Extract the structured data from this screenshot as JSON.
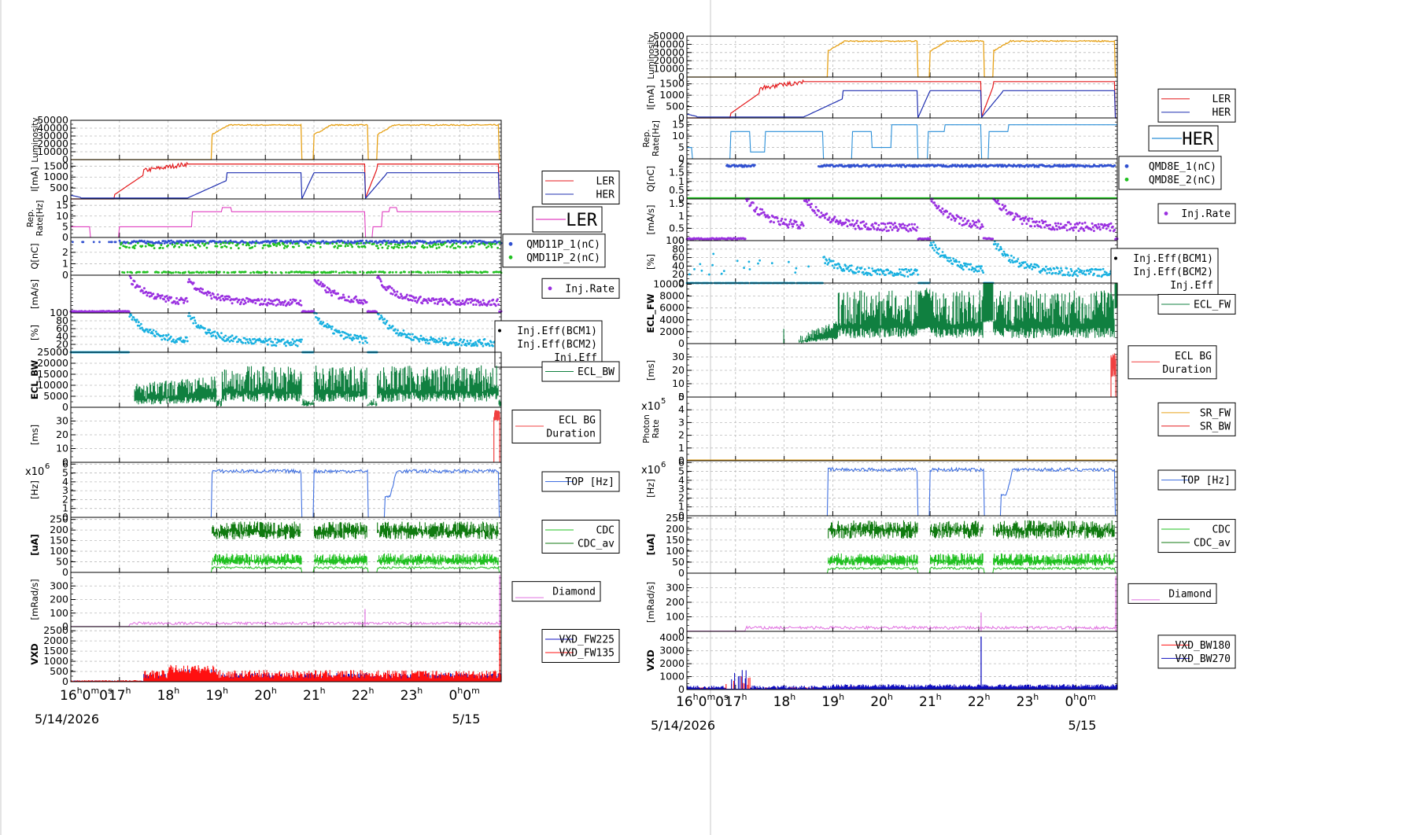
{
  "colors": {
    "lum": "#e6a117",
    "ler": "#e41a1c",
    "her": "#1f2fb0",
    "rep_ler": "#e040c0",
    "rep_her": "#2a8fd8",
    "q1": "#3050d0",
    "q2": "#20c020",
    "inj_rate": "#9a30e0",
    "inj_eff": "#18b0e0",
    "ecl": "#108040",
    "eclbg": "#f04040",
    "sr_fw": "#e6a117",
    "sr_bw": "#e41a1c",
    "top": "#4070e0",
    "cdc": "#20c020",
    "cdc_av": "#107a10",
    "diamond": "#e070e0",
    "vxd_a": "#1010c0",
    "vxd_b": "#ff1010",
    "grid": "#bbbbbb"
  },
  "time_axis": {
    "date_label": "5/14/2026",
    "next_date_label": "5/15",
    "ticks": [
      {
        "t": 16.0,
        "hour": "16",
        "sup": "h",
        "sub": "m",
        "sub2": "0",
        "sup2": "s"
      },
      {
        "t": 17.0,
        "hour": "17",
        "sup": "h"
      },
      {
        "t": 18.0,
        "hour": "18",
        "sup": "h"
      },
      {
        "t": 19.0,
        "hour": "19",
        "sup": "h"
      },
      {
        "t": 20.0,
        "hour": "20",
        "sup": "h"
      },
      {
        "t": 21.0,
        "hour": "21",
        "sup": "h"
      },
      {
        "t": 22.0,
        "hour": "22",
        "sup": "h"
      },
      {
        "t": 23.0,
        "hour": "23",
        "sup": "h"
      },
      {
        "t": 24.0,
        "hour": "0",
        "sup": "h",
        "sub": "0",
        "sup3": "m"
      }
    ],
    "range": [
      16.0,
      24.85
    ]
  },
  "chart_data": [
    {
      "type": "line",
      "title": "",
      "x_range": [
        16.0,
        24.85
      ],
      "panels": [
        {
          "id": "lum",
          "ylabel": "Luminosity",
          "ylim": [
            0,
            50000
          ],
          "ticks": [
            "50000",
            "40000",
            "30000",
            "20000",
            "10000",
            "0"
          ],
          "tick_values": [
            50000,
            40000,
            30000,
            20000,
            10000,
            0
          ],
          "series": [
            {
              "kind": "lum",
              "color_key": "lum",
              "on": [
                [
                  18.9,
                  20.75
                ],
                [
                  21.0,
                  22.1
                ],
                [
                  22.3,
                  24.8
                ]
              ],
              "level": 44000
            }
          ],
          "legend": []
        },
        {
          "id": "cur",
          "ylabel": "I[mA]",
          "ylim": [
            0,
            1800
          ],
          "ticks": [
            "1500",
            "1000",
            "500",
            "0"
          ],
          "tick_values": [
            1500,
            1000,
            500,
            0
          ],
          "series": [
            {
              "name": "LER",
              "kind": "ler",
              "color_key": "ler"
            },
            {
              "name": "HER",
              "kind": "her",
              "color_key": "her"
            }
          ],
          "legend": [
            "LER",
            "HER"
          ]
        },
        {
          "id": "rep",
          "ylabel": "Rep. Rate[Hz]",
          "ylim": [
            0,
            18
          ],
          "ticks": [
            "15",
            "10",
            "5",
            "0"
          ],
          "tick_values": [
            15,
            10,
            5,
            0
          ],
          "series": [
            {
              "name": "LER",
              "kind": "rep_ler",
              "color_key": "rep_ler"
            }
          ],
          "legend_big": "LER"
        },
        {
          "id": "q",
          "ylabel": "Q[nC]",
          "ylim": [
            0,
            3.3
          ],
          "ticks": [
            "2",
            "1",
            "0"
          ],
          "tick_values": [
            2,
            1,
            0
          ],
          "series": [
            {
              "name": "QMD11P_1(nC)",
              "kind": "q1",
              "color_key": "q1"
            },
            {
              "name": "QMD11P_2(nC)",
              "kind": "q2",
              "color_key": "q2"
            }
          ],
          "legend": [
            "QMD11P_1(nC)",
            "QMD11P_2(nC)"
          ],
          "legend_dots": true
        },
        {
          "id": "injr",
          "ylabel": "[mA/s]",
          "ylim": [
            0,
            2
          ],
          "ticks": [],
          "tick_values": [],
          "series": [
            {
              "name": "Inj.Rate",
              "kind": "injr",
              "color_key": "inj_rate"
            }
          ],
          "legend": [
            "Inj.Rate"
          ],
          "legend_dots": true
        },
        {
          "id": "eff",
          "ylabel": "[%]",
          "ylim": [
            0,
            100
          ],
          "ticks": [
            "100",
            "80",
            "60",
            "40",
            "20",
            "0"
          ],
          "tick_values": [
            100,
            80,
            60,
            40,
            20,
            0
          ],
          "series": [
            {
              "name": "Inj.Eff",
              "kind": "eff",
              "color_key": "inj_eff"
            }
          ],
          "legend": [
            "Inj.Eff(BCM1)",
            "Inj.Eff(BCM2)",
            "Inj.Eff"
          ]
        },
        {
          "id": "ecl",
          "ylabel": "ECL_BW",
          "ylim": [
            0,
            25000
          ],
          "ticks": [
            "25000",
            "20000",
            "15000",
            "10000",
            "5000",
            "0"
          ],
          "tick_values": [
            25000,
            20000,
            15000,
            10000,
            5000,
            0
          ],
          "series": [
            {
              "name": "ECL_BW",
              "kind": "ecl_bw",
              "color_key": "ecl"
            }
          ],
          "legend": [
            "ECL_BW"
          ]
        },
        {
          "id": "eclbg",
          "ylabel": "[ms]",
          "ylim": [
            0,
            40
          ],
          "ticks": [
            "30",
            "20",
            "10",
            "0"
          ],
          "tick_values": [
            30,
            20,
            10,
            0
          ],
          "series": [
            {
              "kind": "eclbg",
              "color_key": "eclbg"
            }
          ],
          "legend": [
            "ECL BG",
            "Duration"
          ],
          "legend_single": true
        },
        {
          "id": "top",
          "ylabel": "[Hz]",
          "ylim": [
            0,
            6.2
          ],
          "ticks": [
            "6",
            "5",
            "4",
            "3",
            "2",
            "1",
            "0"
          ],
          "tick_values": [
            6,
            5,
            4,
            3,
            2,
            1,
            0
          ],
          "exp": "x10",
          "exp_pow": "6",
          "series": [
            {
              "kind": "top",
              "color_key": "top"
            }
          ],
          "legend": [
            "TOP [Hz]"
          ]
        },
        {
          "id": "cdc",
          "ylabel": "[uA]",
          "ylim": [
            0,
            260
          ],
          "ticks": [
            "250",
            "200",
            "150",
            "100",
            "50",
            "0"
          ],
          "tick_values": [
            250,
            200,
            150,
            100,
            50,
            0
          ],
          "series": [
            {
              "kind": "cdc",
              "color_key": "cdc"
            }
          ],
          "legend": [
            "CDC",
            "CDC_av"
          ]
        },
        {
          "id": "dia",
          "ylabel": "[mRad/s]",
          "ylim": [
            0,
            400
          ],
          "ticks": [
            "300",
            "200",
            "100",
            "0"
          ],
          "tick_values": [
            300,
            200,
            100,
            0
          ],
          "series": [
            {
              "kind": "dia",
              "color_key": "diamond"
            }
          ],
          "legend": [
            "Diamond"
          ],
          "legend_single": true
        },
        {
          "id": "vxd",
          "ylabel": "VXD",
          "ylim": [
            0,
            2700
          ],
          "ticks": [
            "2500",
            "2000",
            "1500",
            "1000",
            "500",
            "0"
          ],
          "tick_values": [
            2500,
            2000,
            1500,
            1000,
            500,
            0
          ],
          "series": [
            {
              "name": "VXD_FW225",
              "kind": "vxd_fw",
              "color_key": "vxd_a"
            },
            {
              "name": "VXD_FW135",
              "kind": "vxd_fw",
              "color_key": "vxd_b"
            }
          ],
          "legend": [
            "VXD_FW225",
            "VXD_FW135"
          ]
        }
      ]
    },
    {
      "type": "line",
      "title": "",
      "x_range": [
        16.0,
        24.85
      ],
      "panels": [
        {
          "id": "lum",
          "ylabel": "Luminosity",
          "ylim": [
            0,
            50000
          ],
          "ticks": [
            "50000",
            "40000",
            "30000",
            "20000",
            "10000",
            "0"
          ],
          "tick_values": [
            50000,
            40000,
            30000,
            20000,
            10000,
            0
          ],
          "series": [
            {
              "kind": "lum",
              "color_key": "lum"
            }
          ],
          "legend": []
        },
        {
          "id": "cur",
          "ylabel": "I[mA]",
          "ylim": [
            0,
            1800
          ],
          "ticks": [
            "1500",
            "1000",
            "500",
            "0"
          ],
          "tick_values": [
            1500,
            1000,
            500,
            0
          ],
          "series": [
            {
              "name": "LER",
              "kind": "ler",
              "color_key": "ler"
            },
            {
              "name": "HER",
              "kind": "her",
              "color_key": "her"
            }
          ],
          "legend": [
            "LER",
            "HER"
          ]
        },
        {
          "id": "rep",
          "ylabel": "Rep. Rate[Hz]",
          "ylim": [
            0,
            18
          ],
          "ticks": [
            "15",
            "10",
            "5",
            "0"
          ],
          "tick_values": [
            15,
            10,
            5,
            0
          ],
          "series": [
            {
              "name": "HER",
              "kind": "rep_her",
              "color_key": "rep_her"
            }
          ],
          "legend_big": "HER"
        },
        {
          "id": "q",
          "ylabel": "Q[nC]",
          "ylim": [
            0,
            2.3
          ],
          "ticks": [
            "2",
            "1.5",
            "1",
            "0.5",
            "0"
          ],
          "tick_values": [
            2,
            1.5,
            1,
            0.5,
            0
          ],
          "series": [
            {
              "name": "QMD8E_1(nC)",
              "kind": "q1r",
              "color_key": "q1"
            },
            {
              "name": "QMD8E_2(nC)",
              "kind": "q2r",
              "color_key": "q2"
            }
          ],
          "legend": [
            "QMD8E_1(nC)",
            "QMD8E_2(nC)"
          ],
          "legend_dots": true
        },
        {
          "id": "injr",
          "ylabel": "[mA/s]",
          "ylim": [
            0,
            1.7
          ],
          "ticks": [
            "1.5",
            "1",
            "0.5",
            "0"
          ],
          "tick_values": [
            1.5,
            1,
            0.5,
            0
          ],
          "series": [
            {
              "name": "Inj.Rate",
              "kind": "injr",
              "color_key": "inj_rate"
            }
          ],
          "legend": [
            "Inj.Rate"
          ],
          "legend_dots": true
        },
        {
          "id": "eff",
          "ylabel": "[%]",
          "ylim": [
            0,
            100
          ],
          "ticks": [
            "100",
            "80",
            "60",
            "40",
            "20",
            "0"
          ],
          "tick_values": [
            100,
            80,
            60,
            40,
            20,
            0
          ],
          "series": [
            {
              "name": "Inj.Eff",
              "kind": "effr",
              "color_key": "inj_eff"
            }
          ],
          "legend": [
            "Inj.Eff(BCM1)",
            "Inj.Eff(BCM2)",
            "Inj.Eff"
          ]
        },
        {
          "id": "ecl",
          "ylabel": "ECL_FW",
          "ylim": [
            0,
            10200
          ],
          "ticks": [
            "10000",
            "8000",
            "6000",
            "4000",
            "2000",
            "0"
          ],
          "tick_values": [
            10000,
            8000,
            6000,
            4000,
            2000,
            0
          ],
          "series": [
            {
              "name": "ECL_FW",
              "kind": "ecl_fw",
              "color_key": "ecl"
            }
          ],
          "legend": [
            "ECL_FW"
          ]
        },
        {
          "id": "eclbg",
          "ylabel": "[ms]",
          "ylim": [
            0,
            40
          ],
          "ticks": [
            "30",
            "20",
            "10",
            "0"
          ],
          "tick_values": [
            30,
            20,
            10,
            0
          ],
          "series": [
            {
              "kind": "eclbg",
              "color_key": "eclbg"
            }
          ],
          "legend": [
            "ECL BG",
            "Duration"
          ],
          "legend_single": true
        },
        {
          "id": "sr",
          "ylabel": "Photon Rate",
          "ylim": [
            0,
            5
          ],
          "ticks": [
            "5",
            "4",
            "3",
            "2",
            "1",
            "0"
          ],
          "tick_values": [
            5,
            4,
            3,
            2,
            1,
            0
          ],
          "exp": "x10",
          "exp_pow": "5",
          "series": [
            {
              "name": "SR_FW",
              "kind": "sr",
              "color_key": "sr_fw"
            },
            {
              "name": "SR_BW",
              "kind": "sr0",
              "color_key": "sr_bw"
            }
          ],
          "legend": [
            "SR_FW",
            "SR_BW"
          ]
        },
        {
          "id": "top",
          "ylabel": "[Hz]",
          "ylim": [
            0,
            6.2
          ],
          "ticks": [
            "6",
            "5",
            "4",
            "3",
            "2",
            "1",
            "0"
          ],
          "tick_values": [
            6,
            5,
            4,
            3,
            2,
            1,
            0
          ],
          "exp": "x10",
          "exp_pow": "6",
          "series": [
            {
              "kind": "top",
              "color_key": "top"
            }
          ],
          "legend": [
            "TOP [Hz]"
          ]
        },
        {
          "id": "cdc",
          "ylabel": "[uA]",
          "ylim": [
            0,
            260
          ],
          "ticks": [
            "250",
            "200",
            "150",
            "100",
            "50",
            "0"
          ],
          "tick_values": [
            250,
            200,
            150,
            100,
            50,
            0
          ],
          "series": [
            {
              "kind": "cdc",
              "color_key": "cdc"
            }
          ],
          "legend": [
            "CDC",
            "CDC_av"
          ]
        },
        {
          "id": "dia",
          "ylabel": "[mRad/s]",
          "ylim": [
            0,
            400
          ],
          "ticks": [
            "300",
            "200",
            "100",
            "0"
          ],
          "tick_values": [
            300,
            200,
            100,
            0
          ],
          "series": [
            {
              "kind": "dia",
              "color_key": "diamond"
            }
          ],
          "legend": [
            "Diamond"
          ],
          "legend_single": true
        },
        {
          "id": "vxd",
          "ylabel": "VXD",
          "ylim": [
            0,
            4500
          ],
          "ticks": [
            "4000",
            "3000",
            "2000",
            "1000",
            "0"
          ],
          "tick_values": [
            4000,
            3000,
            2000,
            1000,
            0
          ],
          "series": [
            {
              "name": "VXD_BW180",
              "kind": "vxd_bw",
              "color_key": "vxd_b"
            },
            {
              "name": "VXD_BW270",
              "kind": "vxd_bw",
              "color_key": "vxd_a"
            }
          ],
          "legend": [
            "VXD_BW180",
            "VXD_BW270"
          ]
        }
      ]
    }
  ]
}
